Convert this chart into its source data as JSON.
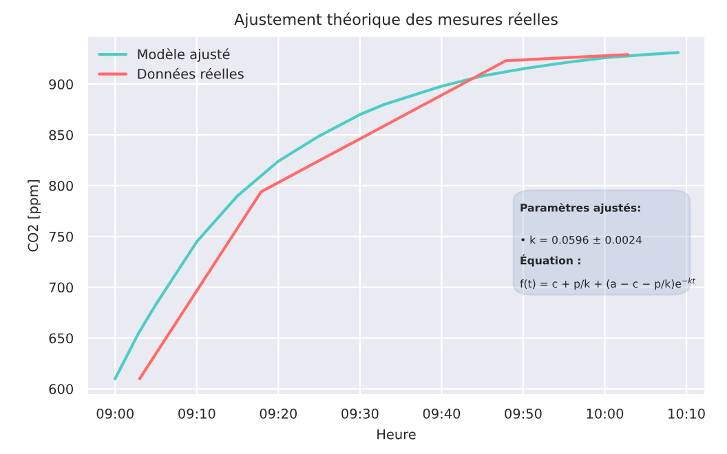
{
  "chart_data": {
    "type": "line",
    "title": "Ajustement théorique des mesures réelles",
    "xlabel": "Heure",
    "ylabel": "CO2 [ppm]",
    "series": [
      {
        "name": "Modèle ajusté",
        "color": "#4ecdc4",
        "x": [
          9.0,
          9.048,
          9.083,
          9.167,
          9.25,
          9.333,
          9.417,
          9.5,
          9.55,
          9.667,
          9.75,
          9.833,
          9.917,
          10.0,
          10.083,
          10.15
        ],
        "values": [
          610,
          655,
          683,
          745,
          790,
          824,
          849,
          870,
          880,
          898,
          908,
          915,
          921,
          926,
          929,
          931
        ]
      },
      {
        "name": "Données réelles",
        "color": "#ff6b6b",
        "x": [
          9.05,
          9.298,
          9.798,
          10.047
        ],
        "values": [
          610,
          794,
          923,
          929
        ]
      }
    ],
    "xlim": [
      8.943,
      10.205
    ],
    "ylim": [
      594,
      947
    ],
    "xticks": [
      {
        "value": 9.0,
        "label": "09:00"
      },
      {
        "value": 9.1667,
        "label": "09:10"
      },
      {
        "value": 9.3333,
        "label": "09:20"
      },
      {
        "value": 9.5,
        "label": "09:30"
      },
      {
        "value": 9.6667,
        "label": "09:40"
      },
      {
        "value": 9.8333,
        "label": "09:50"
      },
      {
        "value": 10.0,
        "label": "10:00"
      },
      {
        "value": 10.1667,
        "label": "10:10"
      }
    ],
    "yticks": [
      600,
      650,
      700,
      750,
      800,
      850,
      900
    ],
    "grid": true,
    "legend": "top left",
    "line_style": "solid",
    "marker": "none",
    "annotations": [
      "Paramètres ajustés:",
      "• k = 0.0596 ± 0.0024",
      "Équation :",
      "f(t) = c + p/k + (a − c − p/k)e$^{−kt}$"
    ]
  }
}
